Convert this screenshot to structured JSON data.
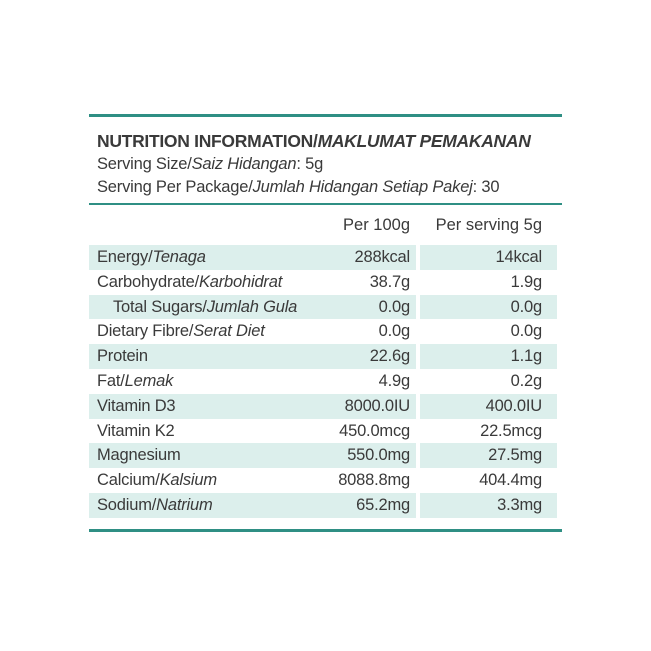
{
  "header": {
    "title_main": "NUTRITION INFORMATION/",
    "title_italic": "MAKLUMAT PEMAKANAN",
    "serving_size_label": "Serving Size/",
    "serving_size_italic": "Saiz Hidangan",
    "serving_size_value": ": 5g",
    "serving_per_package_label": "Serving Per Package/",
    "serving_per_package_italic": "Jumlah Hidangan Setiap Pakej",
    "serving_per_package_value": ": 30"
  },
  "columns": {
    "per_100g": "Per 100g",
    "per_serving": "Per serving 5g"
  },
  "rows": [
    {
      "name": "Energy/",
      "name_italic": "Tenaga",
      "per_100g": "288kcal",
      "per_serving": "14kcal"
    },
    {
      "name": "Carbohydrate/",
      "name_italic": "Karbohidrat",
      "per_100g": "38.7g",
      "per_serving": "1.9g"
    },
    {
      "name": "Total Sugars/",
      "name_italic": "Jumlah Gula",
      "per_100g": "0.0g",
      "per_serving": "0.0g"
    },
    {
      "name": "Dietary Fibre/",
      "name_italic": "Serat Diet",
      "per_100g": "0.0g",
      "per_serving": "0.0g"
    },
    {
      "name": "Protein",
      "name_italic": "",
      "per_100g": "22.6g",
      "per_serving": "1.1g"
    },
    {
      "name": "Fat/",
      "name_italic": "Lemak",
      "per_100g": "4.9g",
      "per_serving": "0.2g"
    },
    {
      "name": "Vitamin D3",
      "name_italic": "",
      "per_100g": "8000.0IU",
      "per_serving": "400.0IU"
    },
    {
      "name": "Vitamin K2",
      "name_italic": "",
      "per_100g": "450.0mcg",
      "per_serving": "22.5mcg"
    },
    {
      "name": "Magnesium",
      "name_italic": "",
      "per_100g": "550.0mg",
      "per_serving": "27.5mg"
    },
    {
      "name": "Calcium/",
      "name_italic": "Kalsium",
      "per_100g": "8088.8mg",
      "per_serving": "404.4mg"
    },
    {
      "name": "Sodium/",
      "name_italic": "Natrium",
      "per_100g": "65.2mg",
      "per_serving": "3.3mg"
    }
  ],
  "colors": {
    "accent": "#2f8f84",
    "row_shade": "#dcefec",
    "text": "#3a3a3a"
  }
}
